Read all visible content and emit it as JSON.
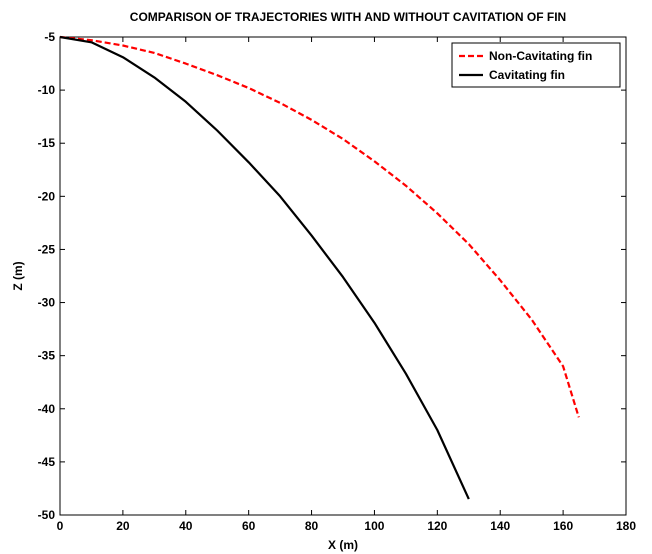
{
  "chart_data": {
    "type": "line",
    "title": "COMPARISON OF TRAJECTORIES WITH AND WITHOUT CAVITATION OF FIN",
    "xlabel": "X (m)",
    "ylabel": "Z (m)",
    "xlim": [
      0,
      180
    ],
    "ylim": [
      -50,
      -5
    ],
    "xticks": [
      0,
      20,
      40,
      60,
      80,
      100,
      120,
      140,
      160,
      180
    ],
    "yticks": [
      -5,
      -10,
      -15,
      -20,
      -25,
      -30,
      -35,
      -40,
      -45,
      -50
    ],
    "grid": false,
    "legend_position": "top-right",
    "series": [
      {
        "name": "Non-Cavitating fin",
        "color": "#ff0000",
        "line_style": "dashed",
        "x": [
          0,
          10,
          20,
          30,
          40,
          50,
          60,
          70,
          80,
          90,
          100,
          110,
          120,
          130,
          140,
          150,
          160,
          165
        ],
        "y": [
          -5.0,
          -5.3,
          -5.8,
          -6.5,
          -7.5,
          -8.6,
          -9.8,
          -11.2,
          -12.8,
          -14.6,
          -16.7,
          -19.0,
          -21.6,
          -24.5,
          -27.9,
          -31.6,
          -36.0,
          -40.8
        ]
      },
      {
        "name": "Cavitating fin",
        "color": "#000000",
        "line_style": "solid",
        "x": [
          0,
          10,
          20,
          30,
          40,
          50,
          60,
          70,
          80,
          90,
          100,
          110,
          120,
          130
        ],
        "y": [
          -5.0,
          -5.5,
          -6.9,
          -8.8,
          -11.1,
          -13.8,
          -16.8,
          -20.0,
          -23.7,
          -27.6,
          -31.9,
          -36.7,
          -42.0,
          -48.5
        ]
      }
    ]
  }
}
